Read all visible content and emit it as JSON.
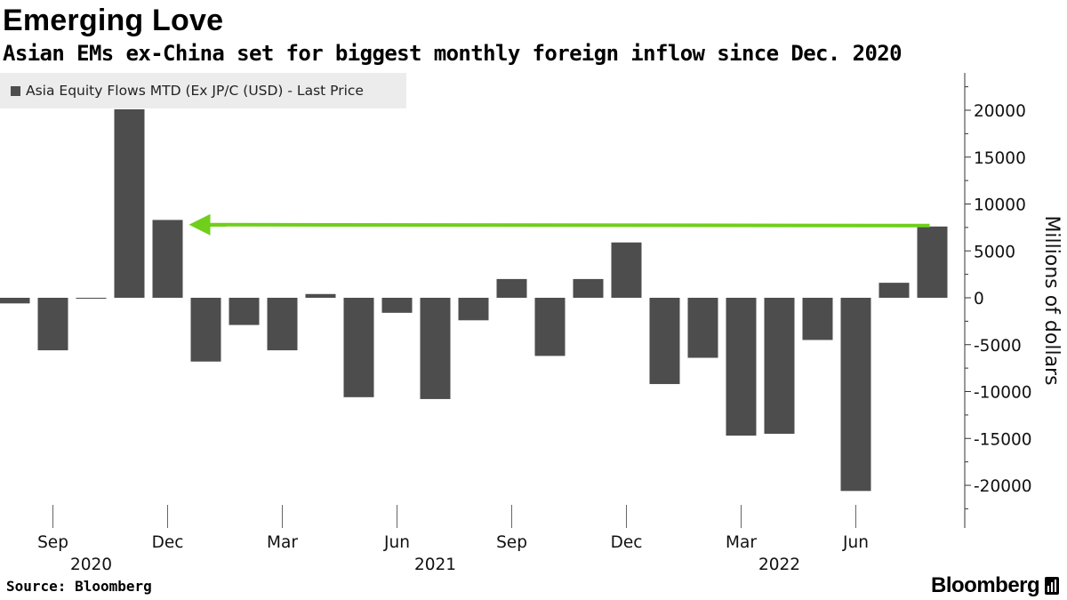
{
  "chart_data": {
    "type": "bar",
    "title": "Emerging Love",
    "subtitle": "Asian EMs ex-China set for biggest monthly foreign inflow since Dec. 2020",
    "legend": "Asia Equity Flows MTD (Ex JP/C (USD) - Last Price",
    "ylabel": "Millions of dollars",
    "ylim": [
      -24000,
      24000
    ],
    "yticks": [
      20000,
      15000,
      10000,
      5000,
      0,
      -5000,
      -10000,
      -15000,
      -20000
    ],
    "ytick_labels": [
      "20000",
      "15000",
      "10000",
      "5000",
      "0",
      "-5000",
      "-10000",
      "-15000",
      "-20000"
    ],
    "categories": [
      "2020-08",
      "2020-09",
      "2020-10",
      "2020-11",
      "2020-12",
      "2021-01",
      "2021-02",
      "2021-03",
      "2021-04",
      "2021-05",
      "2021-06",
      "2021-07",
      "2021-08",
      "2021-09",
      "2021-10",
      "2021-11",
      "2021-12",
      "2022-01",
      "2022-02",
      "2022-03",
      "2022-04",
      "2022-05",
      "2022-06",
      "2022-07",
      "2022-08"
    ],
    "values": [
      -600,
      -5600,
      -100,
      20100,
      8300,
      -6800,
      -2900,
      -5600,
      400,
      -10600,
      -1600,
      -10800,
      -2400,
      2000,
      -6200,
      2000,
      5900,
      -9200,
      -6400,
      -14700,
      -14500,
      -4500,
      -20600,
      1600,
      7600
    ],
    "xticks": [
      {
        "index": 1,
        "label": "Sep"
      },
      {
        "index": 4,
        "label": "Dec"
      },
      {
        "index": 7,
        "label": "Mar"
      },
      {
        "index": 10,
        "label": "Jun"
      },
      {
        "index": 13,
        "label": "Sep"
      },
      {
        "index": 16,
        "label": "Dec"
      },
      {
        "index": 19,
        "label": "Mar"
      },
      {
        "index": 22,
        "label": "Jun"
      }
    ],
    "year_labels": [
      {
        "index": 2,
        "label": "2020"
      },
      {
        "index": 11,
        "label": "2021"
      },
      {
        "index": 20,
        "label": "2022"
      }
    ],
    "annotation": {
      "type": "arrow",
      "from_index": 24,
      "to_index": 4,
      "value": 7700,
      "color": "#6fcf1a"
    },
    "bar_color": "#4d4d4d",
    "grid": false,
    "legend_position": "top-left"
  },
  "footer": {
    "source": "Source: Bloomberg",
    "brand": "Bloomberg"
  }
}
